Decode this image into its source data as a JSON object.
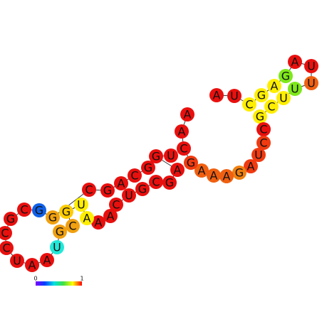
{
  "nodes": [
    {
      "label": "A",
      "color": "#e8100e"
    },
    {
      "label": "U",
      "color": "#e8100e"
    },
    {
      "label": "C",
      "color": "#ffee00"
    },
    {
      "label": "G",
      "color": "#ffee00"
    },
    {
      "label": "A",
      "color": "#ffee00"
    },
    {
      "label": "G",
      "color": "#7ee81a"
    },
    {
      "label": "A",
      "color": "#e8100e"
    },
    {
      "label": "U",
      "color": "#e8100e"
    },
    {
      "label": "U",
      "color": "#f06010"
    },
    {
      "label": "U",
      "color": "#7ee81a"
    },
    {
      "label": "U",
      "color": "#ffee00"
    },
    {
      "label": "C",
      "color": "#ffee00"
    },
    {
      "label": "G",
      "color": "#ffee00"
    },
    {
      "label": "C",
      "color": "#e8100e"
    },
    {
      "label": "C",
      "color": "#f03a10"
    },
    {
      "label": "U",
      "color": "#f03a10"
    },
    {
      "label": "A",
      "color": "#f03a10"
    },
    {
      "label": "G",
      "color": "#f08010"
    },
    {
      "label": "A",
      "color": "#f06010"
    },
    {
      "label": "A",
      "color": "#f06010"
    },
    {
      "label": "A",
      "color": "#f06010"
    },
    {
      "label": "G",
      "color": "#f03a10"
    },
    {
      "label": "C",
      "color": "#e8100e"
    },
    {
      "label": "A",
      "color": "#e8100e"
    },
    {
      "label": "A",
      "color": "#e8100e"
    },
    {
      "label": "U",
      "color": "#e8100e"
    },
    {
      "label": "G",
      "color": "#e8100e"
    },
    {
      "label": "A",
      "color": "#e8100e"
    },
    {
      "label": "G",
      "color": "#e8100e"
    },
    {
      "label": "C",
      "color": "#e8100e"
    },
    {
      "label": "G",
      "color": "#e8100e"
    },
    {
      "label": "U",
      "color": "#e8100e"
    },
    {
      "label": "C",
      "color": "#e8100e"
    },
    {
      "label": "A",
      "color": "#e8100e"
    },
    {
      "label": "A",
      "color": "#e8100e"
    },
    {
      "label": "A",
      "color": "#ffee00"
    },
    {
      "label": "U",
      "color": "#ffee00"
    },
    {
      "label": "G",
      "color": "#ffcc00"
    },
    {
      "label": "C",
      "color": "#f0a010"
    },
    {
      "label": "G",
      "color": "#f0a010"
    },
    {
      "label": "U",
      "color": "#20e8d8"
    },
    {
      "label": "A",
      "color": "#e8100e"
    },
    {
      "label": "A",
      "color": "#e8100e"
    },
    {
      "label": "U",
      "color": "#e8100e"
    },
    {
      "label": "C",
      "color": "#e8100e"
    },
    {
      "label": "C",
      "color": "#e8100e"
    },
    {
      "label": "G",
      "color": "#e8100e"
    },
    {
      "label": "C",
      "color": "#e8100e"
    },
    {
      "label": "G",
      "color": "#1060e8"
    },
    {
      "label": "G",
      "color": "#f0a010"
    },
    {
      "label": "C",
      "color": "#e8100e"
    },
    {
      "label": "G",
      "color": "#e8100e"
    },
    {
      "label": "A",
      "color": "#e8100e"
    },
    {
      "label": "C",
      "color": "#e8100e"
    },
    {
      "label": "G",
      "color": "#e8100e"
    }
  ],
  "colorbar": {
    "min_label": "0",
    "max_label": "1"
  }
}
